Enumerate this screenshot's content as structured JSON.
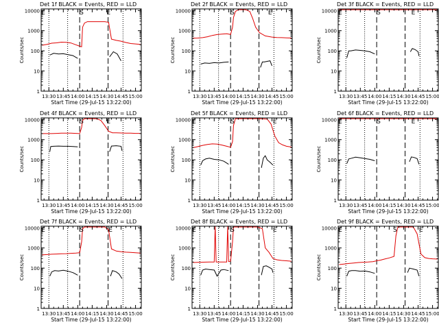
{
  "shared": {
    "xlabel": "Start Time (29-Jul-15 13:22:00)",
    "ylabel": "Counts/sec",
    "x_ticks": [
      "13:30",
      "13:45",
      "14:00",
      "14:15",
      "14:30",
      "14:45",
      "15:00"
    ],
    "x_tick_minutes": [
      30,
      45,
      60,
      75,
      90,
      105,
      120
    ],
    "x_range_minutes": [
      22,
      126
    ],
    "y_ticks": [
      "1",
      "10",
      "100",
      "1000",
      "10000"
    ],
    "y_tick_values": [
      1,
      10,
      100,
      1000,
      10000
    ],
    "y_range": [
      1,
      12000
    ],
    "y_scale": "log",
    "marker_S": "S",
    "marker_E": "E",
    "colors": {
      "events": "#000000",
      "lld": "#e00000",
      "axes": "#000000"
    }
  },
  "chart_data": [
    {
      "type": "line",
      "title": "Det 1f BLACK = Events, RED = LLD",
      "dotted_lines": [
        30,
        49.5,
        107
      ],
      "dashed_lines": [
        62,
        91.5
      ],
      "S_at": 64,
      "E_at": 92,
      "series": [
        {
          "color": "#000000",
          "x": [
            31,
            35,
            40,
            45,
            50,
            55,
            60
          ],
          "y": [
            62,
            75,
            70,
            72,
            65,
            58,
            42
          ]
        },
        {
          "color": "#000000",
          "x": [
            93,
            97,
            101,
            105
          ],
          "y": [
            50,
            90,
            70,
            32
          ]
        },
        {
          "color": "#e00000",
          "x": [
            23,
            28,
            33,
            38,
            43,
            48,
            53,
            58,
            62,
            64,
            65,
            67,
            70,
            80,
            88,
            92,
            95,
            100,
            105,
            110,
            115,
            120,
            125
          ],
          "y": [
            190,
            210,
            240,
            250,
            270,
            265,
            245,
            200,
            170,
            160,
            1500,
            2400,
            2800,
            2800,
            2800,
            2600,
            380,
            330,
            300,
            260,
            230,
            220,
            210
          ]
        }
      ]
    },
    {
      "type": "line",
      "title": "Det 2f BLACK = Events, RED = LLD",
      "dotted_lines": [
        30,
        49.5,
        107
      ],
      "dashed_lines": [
        62,
        91.5
      ],
      "S_at": 64,
      "E_at": 103,
      "series": [
        {
          "color": "#000000",
          "x": [
            31,
            35,
            40,
            45,
            50,
            55,
            60
          ],
          "y": [
            22,
            25,
            24,
            26,
            25,
            27,
            28
          ]
        },
        {
          "color": "#000000",
          "x": [
            93,
            95,
            97,
            100,
            103,
            105
          ],
          "y": [
            15,
            28,
            28,
            30,
            32,
            18
          ]
        },
        {
          "color": "#e00000",
          "x": [
            23,
            28,
            33,
            38,
            43,
            48,
            53,
            58,
            62,
            64,
            65,
            67,
            70,
            74,
            78,
            82,
            85,
            88,
            92,
            98,
            105,
            110,
            115,
            120,
            125
          ],
          "y": [
            420,
            430,
            450,
            500,
            580,
            640,
            680,
            700,
            650,
            1500,
            4500,
            9000,
            11000,
            11000,
            10800,
            9000,
            4000,
            1500,
            800,
            550,
            480,
            460,
            450,
            440,
            430
          ]
        }
      ]
    },
    {
      "type": "line",
      "title": "Det 3f BLACK = Events, RED = LLD",
      "dotted_lines": [
        30,
        49.5,
        107
      ],
      "dashed_lines": [
        62,
        91.5
      ],
      "S_at": 64,
      "E_at": 100,
      "series": [
        {
          "color": "#000000",
          "x": [
            31,
            33,
            35,
            40,
            45,
            50,
            55,
            60
          ],
          "y": [
            45,
            100,
            100,
            110,
            105,
            100,
            90,
            70
          ]
        },
        {
          "color": "#000000",
          "x": [
            97,
            99,
            102,
            105,
            106
          ],
          "y": [
            90,
            130,
            115,
            90,
            55
          ]
        },
        {
          "color": "#e00000",
          "x": [
            23,
            40,
            60,
            80,
            100,
            125
          ],
          "y": [
            11000,
            11000,
            11000,
            11000,
            11000,
            11000
          ]
        }
      ]
    },
    {
      "type": "line",
      "title": "Det 4f BLACK = Events, RED = LLD",
      "dotted_lines": [
        30,
        49.5,
        107
      ],
      "dashed_lines": [
        62,
        91.5
      ],
      "S_at": 64,
      "E_at": 92,
      "series": [
        {
          "color": "#000000",
          "x": [
            31,
            32,
            35,
            40,
            45,
            50,
            55,
            60
          ],
          "y": [
            250,
            460,
            470,
            480,
            470,
            470,
            460,
            440
          ]
        },
        {
          "color": "#000000",
          "x": [
            93,
            95,
            100,
            105,
            106
          ],
          "y": [
            250,
            480,
            500,
            470,
            280
          ]
        },
        {
          "color": "#e00000",
          "x": [
            23,
            28,
            33,
            38,
            43,
            48,
            53,
            58,
            62,
            64,
            65,
            67,
            70,
            80,
            84,
            88,
            92,
            96,
            100,
            105,
            110,
            115,
            120,
            125
          ],
          "y": [
            2000,
            2000,
            2000,
            2050,
            2100,
            2100,
            2100,
            2050,
            2000,
            4000,
            9000,
            11000,
            11000,
            10800,
            9000,
            5000,
            2600,
            2200,
            2200,
            2150,
            2100,
            2100,
            2050,
            2050
          ]
        }
      ]
    },
    {
      "type": "line",
      "title": "Det 5f BLACK = Events, RED = LLD",
      "dotted_lines": [
        30,
        49.5,
        107
      ],
      "dashed_lines": [
        62,
        91.5
      ],
      "S_at": 64,
      "E_at": 108,
      "series": [
        {
          "color": "#000000",
          "x": [
            31,
            33,
            36,
            40,
            45,
            50,
            55,
            60
          ],
          "y": [
            55,
            90,
            110,
            120,
            105,
            100,
            85,
            60
          ]
        },
        {
          "color": "#000000",
          "x": [
            94,
            96,
            98,
            100,
            103,
            106
          ],
          "y": [
            40,
            120,
            160,
            100,
            75,
            55
          ]
        },
        {
          "color": "#e00000",
          "x": [
            23,
            28,
            33,
            38,
            43,
            48,
            53,
            58,
            62,
            64,
            65,
            67,
            70,
            80,
            90,
            100,
            104,
            108,
            112,
            116,
            120,
            125
          ],
          "y": [
            400,
            450,
            520,
            580,
            620,
            600,
            540,
            470,
            420,
            800,
            5000,
            11000,
            11000,
            11000,
            11000,
            10500,
            6000,
            1500,
            700,
            550,
            470,
            430
          ]
        }
      ]
    },
    {
      "type": "line",
      "title": "Det 6f BLACK = Events, RED = LLD",
      "dotted_lines": [
        30,
        49.5,
        107
      ],
      "dashed_lines": [
        62,
        91.5
      ],
      "S_at": 64,
      "E_at": 100,
      "series": [
        {
          "color": "#000000",
          "x": [
            31,
            33,
            36,
            40,
            45,
            50,
            55,
            60
          ],
          "y": [
            65,
            110,
            120,
            135,
            125,
            115,
            105,
            90
          ]
        },
        {
          "color": "#000000",
          "x": [
            96,
            98,
            101,
            104,
            106
          ],
          "y": [
            80,
            140,
            130,
            115,
            60
          ]
        },
        {
          "color": "#e00000",
          "x": [
            23,
            40,
            60,
            80,
            100,
            125
          ],
          "y": [
            11000,
            11000,
            11000,
            11000,
            11000,
            11000
          ]
        }
      ]
    },
    {
      "type": "line",
      "title": "Det 7f BLACK = Events, RED = LLD",
      "dotted_lines": [
        30,
        49.5,
        107
      ],
      "dashed_lines": [
        62,
        91.5
      ],
      "S_at": 64,
      "E_at": 94,
      "series": [
        {
          "color": "#000000",
          "x": [
            31,
            33,
            36,
            40,
            45,
            50,
            55,
            60
          ],
          "y": [
            40,
            65,
            75,
            72,
            78,
            70,
            60,
            45
          ]
        },
        {
          "color": "#000000",
          "x": [
            94,
            96,
            100,
            103,
            106
          ],
          "y": [
            40,
            75,
            65,
            50,
            30
          ]
        },
        {
          "color": "#e00000",
          "x": [
            23,
            28,
            33,
            38,
            43,
            48,
            53,
            58,
            62,
            64,
            65,
            67,
            70,
            80,
            88,
            92,
            95,
            100,
            105,
            110,
            115,
            120,
            125
          ],
          "y": [
            450,
            470,
            490,
            500,
            510,
            520,
            540,
            560,
            580,
            2000,
            9000,
            11000,
            11000,
            11000,
            11000,
            8000,
            900,
            700,
            650,
            620,
            600,
            580,
            560
          ]
        }
      ]
    },
    {
      "type": "line",
      "title": "Det 8f BLACK = Events, RED = LLD",
      "dotted_lines": [
        30,
        49.5,
        107
      ],
      "dashed_lines": [
        62,
        91.5
      ],
      "S_at": 64,
      "E_at": 108,
      "series": [
        {
          "color": "#000000",
          "x": [
            31,
            33,
            36,
            40,
            45,
            48,
            52,
            55,
            60
          ],
          "y": [
            45,
            80,
            90,
            85,
            80,
            40,
            80,
            85,
            75
          ]
        },
        {
          "color": "#000000",
          "x": [
            94,
            96,
            99,
            102,
            105,
            106
          ],
          "y": [
            45,
            120,
            130,
            110,
            90,
            60
          ]
        },
        {
          "color": "#e00000",
          "x": [
            23,
            30,
            40,
            45,
            46,
            47,
            50,
            58,
            59,
            60,
            62,
            64,
            65,
            67,
            70,
            80,
            90,
            95,
            98,
            102,
            106,
            110,
            115,
            120,
            125
          ],
          "y": [
            190,
            195,
            200,
            200,
            12000,
            200,
            200,
            200,
            12000,
            210,
            220,
            2000,
            11000,
            11000,
            11000,
            11000,
            11000,
            9000,
            1000,
            600,
            300,
            260,
            240,
            230,
            220
          ]
        }
      ]
    },
    {
      "type": "line",
      "title": "Det 9f BLACK = Events, RED = LLD",
      "dotted_lines": [
        30,
        49.5,
        107
      ],
      "dashed_lines": [
        62,
        91.5
      ],
      "S_at": 81,
      "E_at": 108,
      "series": [
        {
          "color": "#000000",
          "x": [
            31,
            33,
            36,
            40,
            45,
            50,
            55,
            60
          ],
          "y": [
            40,
            70,
            75,
            75,
            70,
            72,
            65,
            55
          ]
        },
        {
          "color": "#000000",
          "x": [
            94,
            96,
            100,
            104,
            106
          ],
          "y": [
            60,
            100,
            90,
            80,
            40
          ]
        },
        {
          "color": "#e00000",
          "x": [
            23,
            28,
            33,
            38,
            43,
            48,
            53,
            58,
            62,
            66,
            70,
            75,
            80,
            82,
            84,
            90,
            95,
            100,
            104,
            108,
            112,
            116,
            120,
            125
          ],
          "y": [
            150,
            160,
            170,
            180,
            190,
            195,
            200,
            210,
            230,
            250,
            280,
            320,
            380,
            4000,
            11000,
            11000,
            11000,
            11000,
            5000,
            500,
            330,
            300,
            290,
            280
          ]
        }
      ]
    }
  ]
}
